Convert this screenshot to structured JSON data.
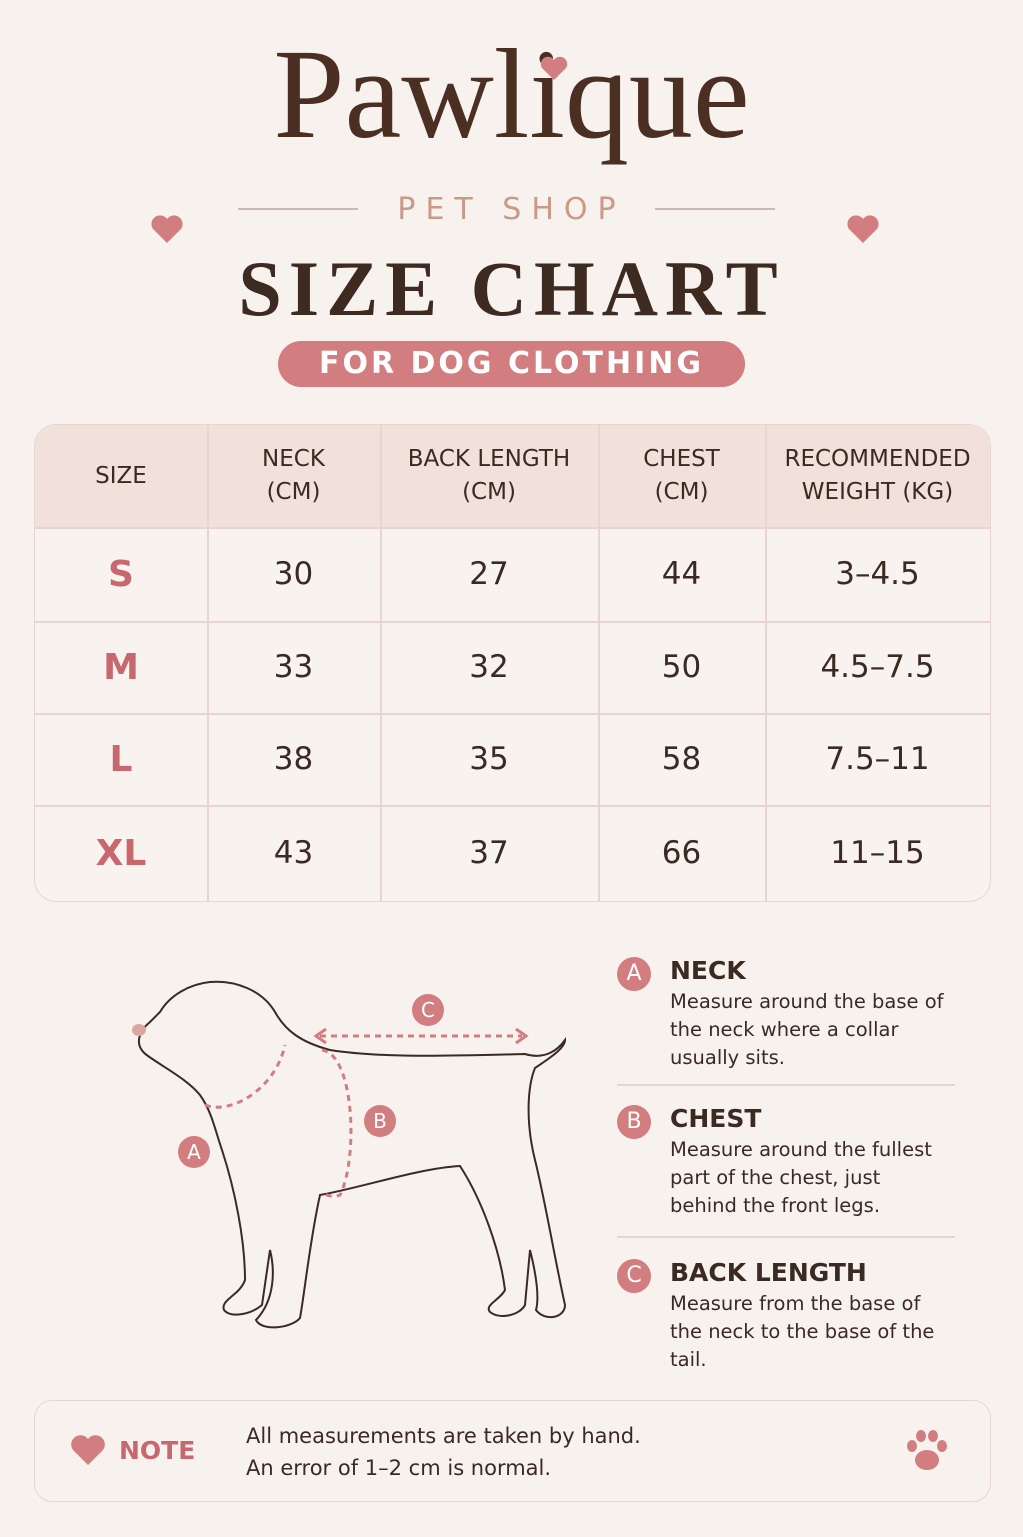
{
  "header": {
    "brand": "Pawlique",
    "subtitle": "PET SHOP",
    "title": "SIZE CHART",
    "badge": "FOR DOG CLOTHING"
  },
  "table": {
    "columns": [
      [
        "SIZE"
      ],
      [
        "NECK",
        "(CM)"
      ],
      [
        "BACK LENGTH",
        "(CM)"
      ],
      [
        "CHEST",
        "(CM)"
      ],
      [
        "RECOMMENDED",
        "WEIGHT (KG)"
      ]
    ],
    "rows": [
      [
        "S",
        "30",
        "27",
        "44",
        "3–4.5"
      ],
      [
        "M",
        "33",
        "32",
        "50",
        "4.5–7.5"
      ],
      [
        "L",
        "38",
        "35",
        "58",
        "7.5–11"
      ],
      [
        "XL",
        "43",
        "37",
        "66",
        "11–15"
      ]
    ]
  },
  "diagram": {
    "labels": [
      "A",
      "B",
      "C"
    ]
  },
  "guide": [
    {
      "letter": "A",
      "title": "NECK",
      "text": "Measure around the base of the neck where a collar usually sits."
    },
    {
      "letter": "B",
      "title": "CHEST",
      "text": "Measure around the fullest part of the chest, just behind the front legs."
    },
    {
      "letter": "C",
      "title": "BACK LENGTH",
      "text": "Measure from the base of the neck to the base of the tail."
    }
  ],
  "note": {
    "label": "NOTE",
    "lines": [
      "All measurements are taken by hand.",
      "An error of 1–2 cm is normal."
    ]
  }
}
